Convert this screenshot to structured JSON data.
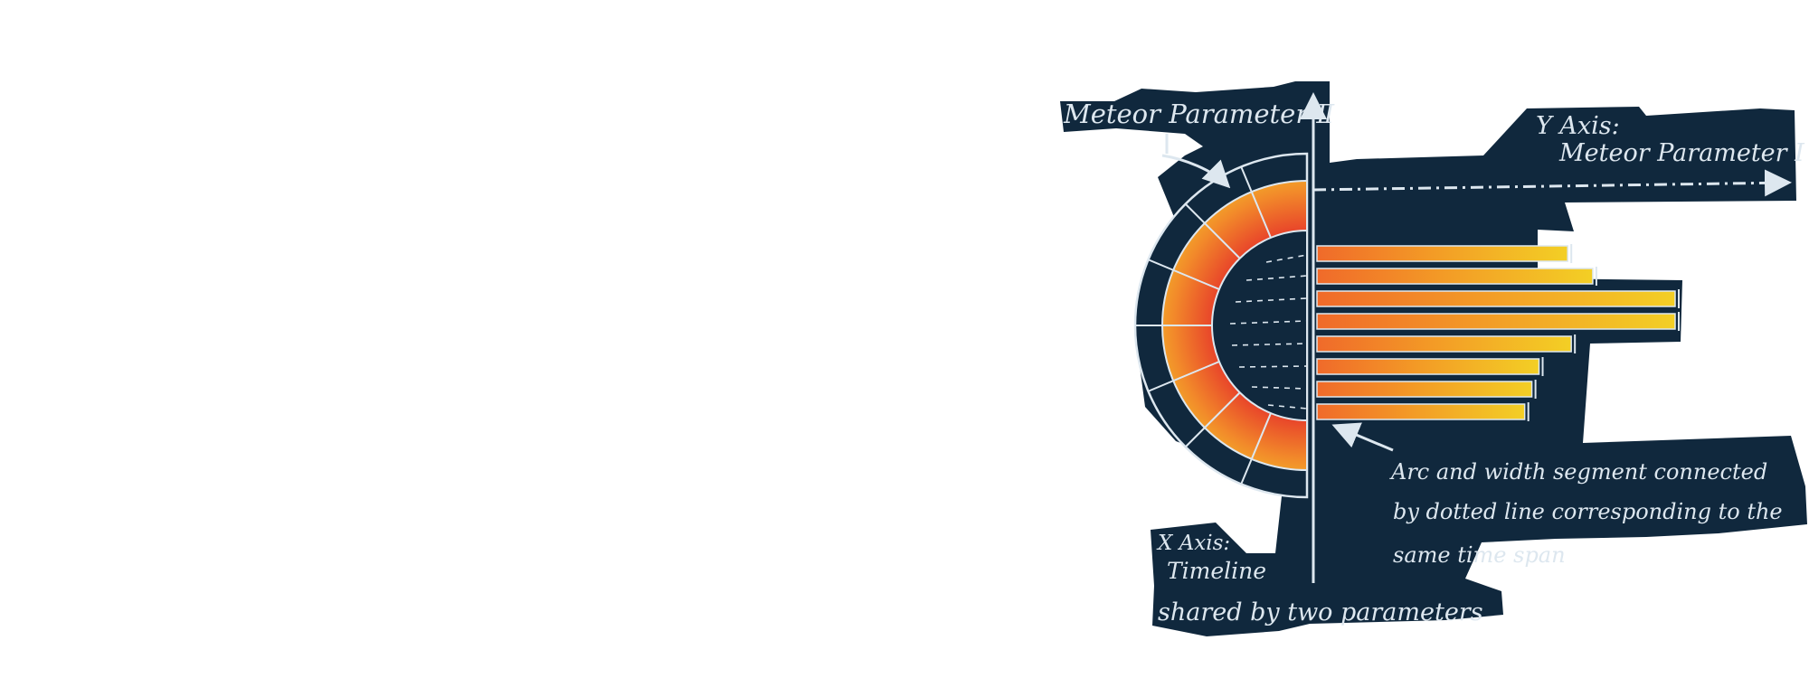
{
  "labels": {
    "meteor_param_2": "Meteor Parameter Ⅱ",
    "y_axis_line1": "Y Axis:",
    "y_axis_line2": "Meteor Parameter Ⅰ",
    "note_line1": "Arc and width segment connected",
    "note_line2": "by dotted line corresponding to the",
    "note_line3": "same time span",
    "x_axis_line1": "X Axis:",
    "x_axis_line2": "Timeline",
    "x_axis_line3": "shared by two parameters"
  },
  "chart_data": {
    "type": "radial-and-bar sketch",
    "segments": 8,
    "bar_lengths": [
      0.7,
      0.77,
      1.0,
      1.0,
      0.71,
      0.62,
      0.6,
      0.58
    ],
    "colors": {
      "background_patch": "#10283d",
      "chalk": "#dde7ef",
      "yellow": "#f0c020",
      "orange": "#f07a2a",
      "red": "#e8502a"
    }
  }
}
